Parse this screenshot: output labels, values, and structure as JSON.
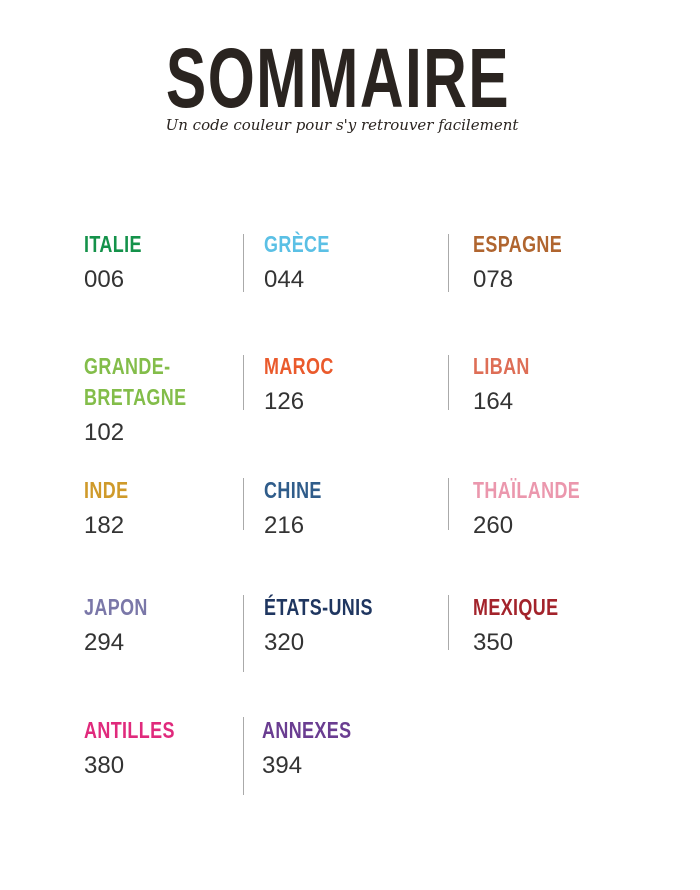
{
  "header": {
    "title": "SOMMAIRE",
    "subtitle": "Un code couleur pour s'y retrouver facilement"
  },
  "entries": [
    {
      "name": "ITALIE",
      "page": "006",
      "color": "#14924a"
    },
    {
      "name": "GRÈCE",
      "page": "044",
      "color": "#5bc0e5"
    },
    {
      "name": "ESPAGNE",
      "page": "078",
      "color": "#b0652f"
    },
    {
      "name": "GRANDE-\nBRETAGNE",
      "page": "102",
      "color": "#83bd4a"
    },
    {
      "name": "MAROC",
      "page": "126",
      "color": "#ea5a2c"
    },
    {
      "name": "LIBAN",
      "page": "164",
      "color": "#de6e56"
    },
    {
      "name": "INDE",
      "page": "182",
      "color": "#cf9a2a"
    },
    {
      "name": "CHINE",
      "page": "216",
      "color": "#2f5c8a"
    },
    {
      "name": "THAÏLANDE",
      "page": "260",
      "color": "#eb97ad"
    },
    {
      "name": "JAPON",
      "page": "294",
      "color": "#7a77a8"
    },
    {
      "name": "ÉTATS-UNIS",
      "page": "320",
      "color": "#1f3660"
    },
    {
      "name": "MEXIQUE",
      "page": "350",
      "color": "#a3232b"
    },
    {
      "name": "ANTILLES",
      "page": "380",
      "color": "#e02a7c"
    },
    {
      "name": "ANNEXES",
      "page": "394",
      "color": "#6a3d91"
    }
  ]
}
